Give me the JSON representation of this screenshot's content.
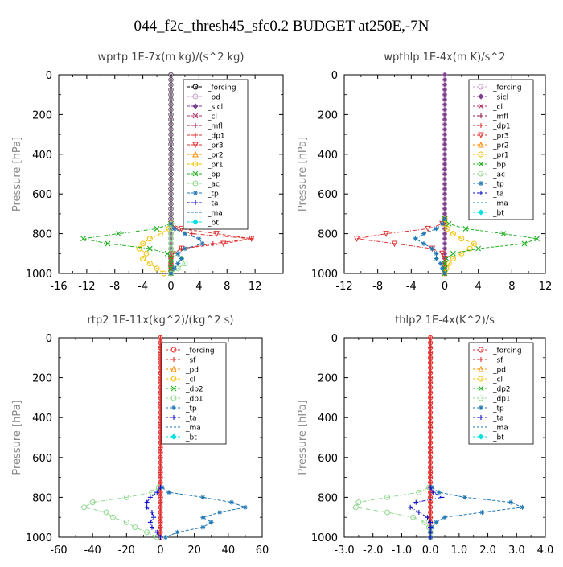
{
  "figure": {
    "title": "044_f2c_thresh45_sfc0.2  BUDGET at250E,-7N"
  },
  "chart_data": [
    {
      "type": "line",
      "title": "wprtp   1E-7x(m kg)/(s^2 kg)",
      "ylabel": "Pressure [hPa]",
      "xlim": [
        -16,
        16
      ],
      "ylim": [
        0,
        1000
      ],
      "x_ticks": [
        -16,
        -12,
        -8,
        -4,
        0,
        4,
        8,
        12
      ],
      "x_tick_labels": [
        "-16",
        "-12",
        "-8",
        "-4",
        "0",
        "4",
        "8",
        "12"
      ],
      "y_ticks": [
        0,
        200,
        400,
        600,
        800,
        1000
      ],
      "legend_position": "upper-center-right",
      "pressure": [
        750,
        775,
        800,
        825,
        850,
        875,
        900,
        925,
        950,
        975,
        1000
      ],
      "series": [
        {
          "name": "_forcing",
          "color": "#000000",
          "marker": "circle",
          "values": [
            0,
            0,
            0,
            0,
            0,
            0,
            0,
            0,
            0,
            0,
            0
          ]
        },
        {
          "name": "_pd",
          "color": "#c8a2c8",
          "marker": "circle",
          "values": [
            0,
            0,
            0,
            0,
            0,
            0,
            0,
            0,
            0,
            0,
            0
          ]
        },
        {
          "name": "_sicl",
          "color": "#7b3f8f",
          "marker": "diamond",
          "values": [
            0,
            0,
            0,
            0,
            0,
            0,
            0,
            0,
            0,
            0,
            0
          ]
        },
        {
          "name": "_cl",
          "color": "#b03060",
          "marker": "x",
          "values": [
            0,
            0,
            0,
            0,
            0,
            0,
            0,
            0,
            0,
            0,
            0
          ]
        },
        {
          "name": "_mfl",
          "color": "#a0204a",
          "marker": "plus",
          "values": [
            0,
            0,
            0,
            0,
            0,
            0,
            0,
            0,
            0,
            0,
            0
          ]
        },
        {
          "name": "_dp1",
          "color": "#e03030",
          "marker": "plus",
          "values": [
            0.2,
            0.6,
            3.0,
            11.5,
            6.0,
            1.5,
            0.3,
            0,
            0,
            0,
            0
          ]
        },
        {
          "name": "_pr3",
          "color": "#e03030",
          "marker": "triangle-down",
          "values": [
            0,
            1.5,
            6.5,
            11.5,
            7.5,
            1.5,
            0.2,
            0,
            0,
            0,
            0
          ]
        },
        {
          "name": "_pr2",
          "color": "#ff8c00",
          "marker": "triangle-up",
          "values": [
            0,
            0,
            0,
            0,
            0,
            0,
            0,
            0,
            0,
            0,
            0
          ]
        },
        {
          "name": "_pr1",
          "color": "#f0c000",
          "marker": "circle",
          "values": [
            0,
            -0.3,
            -1.5,
            -3.0,
            -4.0,
            -4.5,
            -3.5,
            -4.0,
            -3.0,
            -2.0,
            -1.0
          ]
        },
        {
          "name": "_bp",
          "color": "#20b020",
          "marker": "x",
          "values": [
            0,
            -2.0,
            -7.5,
            -12.5,
            -9.0,
            -3.0,
            -0.5,
            0,
            0,
            0,
            0
          ]
        },
        {
          "name": "_ac",
          "color": "#90d890",
          "marker": "circle",
          "values": [
            0,
            0,
            0,
            0,
            0,
            0,
            0.5,
            1.5,
            2.0,
            1.0,
            0
          ]
        },
        {
          "name": "_tp",
          "color": "#1f77b4",
          "marker": "star",
          "values": [
            0,
            0.5,
            2.0,
            4.0,
            4.5,
            2.0,
            1.0,
            1.5,
            1.0,
            0.5,
            0
          ]
        },
        {
          "name": "_ta",
          "color": "#1010c8",
          "marker": "plus",
          "values": [
            0,
            0,
            0,
            0,
            0,
            0,
            0,
            0,
            0,
            0,
            0
          ]
        },
        {
          "name": "_ma",
          "color": "#1f77b4",
          "marker": "none",
          "values": [
            0,
            0,
            0,
            0,
            0,
            0,
            0,
            0,
            0,
            0,
            0
          ]
        },
        {
          "name": "_bt",
          "color": "#00e0e0",
          "marker": "diamond",
          "values": [
            0,
            0,
            0,
            0,
            0,
            0,
            0,
            0,
            0,
            0,
            0
          ]
        }
      ]
    },
    {
      "type": "line",
      "title": "wpthlp   1E-4x(m K)/s^2",
      "ylabel": "Pressure [hPa]",
      "xlim": [
        -12,
        12
      ],
      "ylim": [
        0,
        1000
      ],
      "x_ticks": [
        -12,
        -8,
        -4,
        0,
        4,
        8,
        12
      ],
      "x_tick_labels": [
        "-12",
        "-8",
        "-4",
        "0",
        "4",
        "8",
        "12"
      ],
      "y_ticks": [
        0,
        200,
        400,
        600,
        800,
        1000
      ],
      "legend_position": "upper-center-right",
      "pressure": [
        725,
        750,
        775,
        800,
        825,
        850,
        875,
        900,
        925,
        950,
        975,
        1000
      ],
      "series": [
        {
          "name": "_forcing",
          "color": "#c8a2c8",
          "marker": "circle",
          "values": [
            0,
            0,
            0,
            0,
            0,
            0,
            0,
            0,
            0,
            0,
            0,
            0
          ]
        },
        {
          "name": "_sicl",
          "color": "#7b3f8f",
          "marker": "diamond",
          "values": [
            0,
            0,
            0,
            0,
            0,
            0,
            0,
            0,
            0,
            0,
            0,
            0
          ]
        },
        {
          "name": "_cl",
          "color": "#b03060",
          "marker": "x",
          "values": [
            0,
            0,
            0,
            0,
            0,
            0,
            0,
            0,
            0,
            0,
            0,
            0
          ]
        },
        {
          "name": "_mfl",
          "color": "#a0204a",
          "marker": "plus",
          "values": [
            0,
            0,
            0,
            0,
            0,
            0,
            0,
            0,
            0,
            0,
            0,
            0
          ]
        },
        {
          "name": "_dp1",
          "color": "#e03030",
          "marker": "plus",
          "values": [
            0,
            0,
            0,
            0,
            0,
            0,
            0,
            0,
            0,
            0,
            0,
            0
          ]
        },
        {
          "name": "_pr3",
          "color": "#e03030",
          "marker": "triangle-down",
          "values": [
            0,
            -0.3,
            -2.0,
            -7.0,
            -10.5,
            -6.0,
            -1.5,
            -0.3,
            0,
            0,
            0,
            0
          ]
        },
        {
          "name": "_pr2",
          "color": "#ff8c00",
          "marker": "triangle-up",
          "values": [
            0,
            0,
            0,
            0,
            0,
            0,
            0,
            0,
            0,
            0,
            0,
            0
          ]
        },
        {
          "name": "_pr1",
          "color": "#f0c000",
          "marker": "circle",
          "values": [
            0,
            0,
            0.3,
            1.0,
            2.0,
            3.5,
            3.0,
            2.0,
            1.0,
            0.5,
            0.2,
            0
          ]
        },
        {
          "name": "_bp",
          "color": "#20b020",
          "marker": "x",
          "values": [
            0,
            0.5,
            2.5,
            7.0,
            11.0,
            9.5,
            4.0,
            1.0,
            0.2,
            0,
            0,
            0
          ]
        },
        {
          "name": "_ac",
          "color": "#90d890",
          "marker": "circle",
          "values": [
            0,
            0,
            0,
            0,
            0,
            0,
            0,
            0,
            0,
            0,
            0,
            0
          ]
        },
        {
          "name": "_tp",
          "color": "#1f77b4",
          "marker": "star",
          "values": [
            0,
            -0.3,
            -1.0,
            -2.5,
            -3.5,
            -2.5,
            -1.5,
            -1.0,
            -1.0,
            -0.5,
            -0.3,
            0
          ]
        },
        {
          "name": "_ta",
          "color": "#1010c8",
          "marker": "plus",
          "values": [
            0,
            0,
            0,
            0,
            0,
            0,
            0,
            0,
            0,
            0,
            0,
            0
          ]
        },
        {
          "name": "_ma",
          "color": "#1f77b4",
          "marker": "none",
          "values": [
            0,
            0,
            0,
            0,
            0,
            0,
            0,
            0,
            0,
            0,
            0,
            0
          ]
        },
        {
          "name": "_bt",
          "color": "#00e0e0",
          "marker": "diamond",
          "values": [
            0,
            0,
            0,
            0,
            0,
            0,
            0,
            0,
            0,
            0,
            0,
            0
          ]
        }
      ]
    },
    {
      "type": "line",
      "title": "rtp2   1E-11x(kg^2)/(kg^2 s)",
      "ylabel": "Pressure [hPa]",
      "xlim": [
        -60,
        60
      ],
      "ylim": [
        0,
        1000
      ],
      "x_ticks": [
        -60,
        -40,
        -20,
        0,
        20,
        40,
        60
      ],
      "x_tick_labels": [
        "-60",
        "-40",
        "-20",
        "0",
        "20",
        "40",
        "60"
      ],
      "y_ticks": [
        0,
        200,
        400,
        600,
        800,
        1000
      ],
      "legend_position": "upper-center-right",
      "pressure": [
        750,
        775,
        800,
        825,
        850,
        875,
        900,
        925,
        950,
        975,
        1000
      ],
      "series": [
        {
          "name": "_forcing",
          "color": "#e03030",
          "marker": "circle",
          "values": [
            0,
            0,
            0,
            0,
            0,
            0,
            0,
            0,
            0,
            0,
            0
          ]
        },
        {
          "name": "_sf",
          "color": "#e03030",
          "marker": "plus",
          "values": [
            0,
            0,
            0,
            0,
            0,
            0,
            0,
            0,
            0,
            0,
            0
          ]
        },
        {
          "name": "_pd",
          "color": "#ff8c00",
          "marker": "triangle-up",
          "values": [
            0,
            0,
            0,
            0,
            0,
            0,
            0,
            0,
            0,
            0,
            0
          ]
        },
        {
          "name": "_cl",
          "color": "#f0c000",
          "marker": "circle",
          "values": [
            0,
            0,
            0,
            0,
            0,
            0,
            0,
            0,
            0,
            0,
            0
          ]
        },
        {
          "name": "_dp2",
          "color": "#20b020",
          "marker": "x",
          "values": [
            0,
            0,
            0,
            0,
            0,
            0,
            0,
            0,
            0,
            0,
            0
          ]
        },
        {
          "name": "_dp1",
          "color": "#90d890",
          "marker": "circle",
          "values": [
            -1,
            -5,
            -20,
            -40,
            -45,
            -32,
            -28,
            -20,
            -15,
            -8,
            -2
          ]
        },
        {
          "name": "_tp",
          "color": "#1f77b4",
          "marker": "star",
          "values": [
            1,
            5,
            25,
            42,
            50,
            35,
            25,
            30,
            25,
            10,
            3
          ]
        },
        {
          "name": "_ta",
          "color": "#1010c8",
          "marker": "plus",
          "values": [
            0,
            -2,
            -6,
            -8,
            -8,
            -5,
            -4,
            -6,
            -5,
            -2,
            0
          ]
        },
        {
          "name": "_ma",
          "color": "#1f77b4",
          "marker": "none",
          "values": [
            0,
            0,
            0,
            0,
            0,
            0,
            0,
            0,
            0,
            0,
            0
          ]
        },
        {
          "name": "_bt",
          "color": "#00e0e0",
          "marker": "diamond",
          "values": [
            0,
            0,
            0,
            0,
            0,
            0,
            0,
            0,
            0,
            0,
            0
          ]
        }
      ]
    },
    {
      "type": "line",
      "title": "thlp2   1E-4x(K^2)/s",
      "ylabel": "Pressure [hPa]",
      "xlim": [
        -3.0,
        4.0
      ],
      "ylim": [
        0,
        1000
      ],
      "x_ticks": [
        -3.0,
        -2.0,
        -1.0,
        0.0,
        1.0,
        2.0,
        3.0,
        4.0
      ],
      "x_tick_labels": [
        "-3.0",
        "-2.0",
        "-1.0",
        "0.0",
        "1.0",
        "2.0",
        "3.0",
        "4.0"
      ],
      "y_ticks": [
        0,
        200,
        400,
        600,
        800,
        1000
      ],
      "legend_position": "upper-center-right",
      "pressure": [
        750,
        775,
        800,
        825,
        850,
        875,
        900,
        925,
        950,
        975,
        1000
      ],
      "series": [
        {
          "name": "_forcing",
          "color": "#e03030",
          "marker": "circle",
          "values": [
            0,
            0,
            0,
            0,
            0,
            0,
            0,
            0,
            0,
            0,
            0
          ]
        },
        {
          "name": "_sf",
          "color": "#e03030",
          "marker": "plus",
          "values": [
            0,
            0,
            0,
            0,
            0,
            0,
            0,
            0,
            0,
            0,
            0
          ]
        },
        {
          "name": "_pd",
          "color": "#ff8c00",
          "marker": "triangle-up",
          "values": [
            0,
            0,
            0,
            0,
            0,
            0,
            0,
            0,
            0,
            0,
            0
          ]
        },
        {
          "name": "_cl",
          "color": "#f0c000",
          "marker": "circle",
          "values": [
            0,
            0,
            0,
            0,
            0,
            0,
            0,
            0,
            0,
            0,
            0
          ]
        },
        {
          "name": "_dp2",
          "color": "#20b020",
          "marker": "x",
          "values": [
            0,
            0,
            0,
            0,
            0,
            0,
            0,
            0,
            0,
            0,
            0
          ]
        },
        {
          "name": "_dp1",
          "color": "#90d890",
          "marker": "circle",
          "values": [
            -0.05,
            -0.4,
            -1.5,
            -2.5,
            -2.6,
            -1.5,
            -0.6,
            -0.2,
            -0.05,
            0,
            0
          ]
        },
        {
          "name": "_tp",
          "color": "#1f77b4",
          "marker": "star",
          "values": [
            0.05,
            0.3,
            1.2,
            2.8,
            3.2,
            1.8,
            0.5,
            0.2,
            0.05,
            0,
            0
          ]
        },
        {
          "name": "_ta",
          "color": "#1010c8",
          "marker": "plus",
          "values": [
            0,
            0.1,
            0.4,
            -0.5,
            -0.7,
            -0.4,
            -0.1,
            0,
            0,
            0,
            0
          ]
        },
        {
          "name": "_ma",
          "color": "#1f77b4",
          "marker": "none",
          "values": [
            0,
            0,
            0,
            0,
            0,
            0,
            0,
            0,
            0,
            0,
            0
          ]
        },
        {
          "name": "_bt",
          "color": "#00e0e0",
          "marker": "diamond",
          "values": [
            0,
            0,
            0,
            0,
            0,
            0,
            0,
            0,
            0,
            0,
            0
          ]
        }
      ]
    }
  ]
}
